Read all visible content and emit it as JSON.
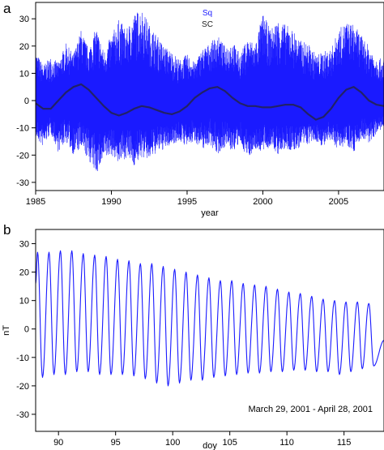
{
  "chart_data": [
    {
      "panel_label": "a",
      "type": "line",
      "xlabel": "year",
      "ylabel": "",
      "xlim": [
        1985,
        2008
      ],
      "ylim": [
        -33,
        36
      ],
      "x_ticks": [
        1985,
        1990,
        1995,
        2000,
        2005
      ],
      "y_ticks": [
        -30,
        -20,
        -10,
        0,
        10,
        20,
        30
      ],
      "legend_position": "top-right",
      "series": [
        {
          "name": "Sq",
          "color": "#1a1aff",
          "style": "dense oscillation envelope",
          "x": [
            1985,
            1985.5,
            1986,
            1986.5,
            1987,
            1987.5,
            1988,
            1988.5,
            1989,
            1989.5,
            1990,
            1990.5,
            1991,
            1991.5,
            1992,
            1992.5,
            1993,
            1993.5,
            1994,
            1994.5,
            1995,
            1995.5,
            1996,
            1996.5,
            1997,
            1997.5,
            1998,
            1998.5,
            1999,
            1999.5,
            2000,
            2000.5,
            2001,
            2001.5,
            2002,
            2002.5,
            2003,
            2003.5,
            2004,
            2004.5,
            2005,
            2005.5,
            2006,
            2006.5,
            2007,
            2007.5,
            2008
          ],
          "upper": [
            18,
            13,
            16,
            14,
            21,
            17,
            26,
            19,
            27,
            18,
            24,
            30,
            26,
            32,
            34,
            28,
            24,
            20,
            18,
            15,
            17,
            14,
            19,
            21,
            24,
            20,
            22,
            17,
            23,
            21,
            32,
            26,
            30,
            28,
            26,
            22,
            21,
            17,
            18,
            19,
            26,
            29,
            28,
            24,
            20,
            16,
            15
          ],
          "lower": [
            -14,
            -17,
            -12,
            -19,
            -15,
            -20,
            -18,
            -22,
            -27,
            -22,
            -20,
            -23,
            -21,
            -24,
            -21,
            -22,
            -19,
            -18,
            -16,
            -15,
            -17,
            -15,
            -18,
            -16,
            -20,
            -17,
            -19,
            -16,
            -21,
            -18,
            -19,
            -17,
            -20,
            -18,
            -19,
            -17,
            -16,
            -15,
            -17,
            -15,
            -18,
            -16,
            -19,
            -14,
            -16,
            -12,
            -10
          ]
        },
        {
          "name": "SC",
          "color": "#222266",
          "x": [
            1985,
            1985.5,
            1986,
            1986.5,
            1987,
            1987.5,
            1988,
            1988.5,
            1989,
            1989.5,
            1990,
            1990.5,
            1991,
            1991.5,
            1992,
            1992.5,
            1993,
            1993.5,
            1994,
            1994.5,
            1995,
            1995.5,
            1996,
            1996.5,
            1997,
            1997.5,
            1998,
            1998.5,
            1999,
            1999.5,
            2000,
            2000.5,
            2001,
            2001.5,
            2002,
            2002.5,
            2003,
            2003.5,
            2004,
            2004.5,
            2005,
            2005.5,
            2006,
            2006.5,
            2007,
            2007.5,
            2008
          ],
          "values": [
            -1,
            -3,
            -3,
            0,
            3,
            5,
            6,
            4,
            1,
            -2,
            -4.5,
            -5.5,
            -4.5,
            -3,
            -2,
            -2.5,
            -3.5,
            -4.5,
            -5,
            -4,
            -2,
            1,
            3,
            4.5,
            5,
            3.5,
            1,
            -1,
            -2,
            -2,
            -2.5,
            -2.5,
            -2,
            -1.5,
            -1.5,
            -2.5,
            -5,
            -7,
            -6,
            -3,
            1,
            4,
            5,
            3,
            0,
            -1.5,
            -2
          ]
        }
      ]
    },
    {
      "panel_label": "b",
      "type": "line",
      "xlabel": "doy",
      "ylabel": "nT",
      "xlim": [
        88,
        118.5
      ],
      "ylim": [
        -36,
        35
      ],
      "x_ticks": [
        90,
        95,
        100,
        105,
        110,
        115
      ],
      "y_ticks": [
        -30,
        -20,
        -10,
        0,
        10,
        20,
        30
      ],
      "annotation": "March 29, 2001 - April 28, 2001",
      "series": [
        {
          "name": "",
          "color": "#1a1aff",
          "period_days": 1,
          "peaks": [
            {
              "x": 88.17,
              "y": 27
            },
            {
              "x": 89.17,
              "y": 27
            },
            {
              "x": 90.17,
              "y": 27.5
            },
            {
              "x": 91.17,
              "y": 27.5
            },
            {
              "x": 92.17,
              "y": 26.5
            },
            {
              "x": 93.17,
              "y": 26
            },
            {
              "x": 94.17,
              "y": 25.5
            },
            {
              "x": 95.17,
              "y": 24.5
            },
            {
              "x": 96.17,
              "y": 24
            },
            {
              "x": 97.17,
              "y": 23
            },
            {
              "x": 98.17,
              "y": 23
            },
            {
              "x": 99.17,
              "y": 22
            },
            {
              "x": 100.17,
              "y": 21
            },
            {
              "x": 101.17,
              "y": 20
            },
            {
              "x": 102.17,
              "y": 19
            },
            {
              "x": 103.17,
              "y": 18
            },
            {
              "x": 104.17,
              "y": 17
            },
            {
              "x": 105.17,
              "y": 17
            },
            {
              "x": 106.17,
              "y": 16
            },
            {
              "x": 107.17,
              "y": 15.5
            },
            {
              "x": 108.17,
              "y": 15
            },
            {
              "x": 109.17,
              "y": 14
            },
            {
              "x": 110.17,
              "y": 13
            },
            {
              "x": 111.17,
              "y": 12.5
            },
            {
              "x": 112.17,
              "y": 11.5
            },
            {
              "x": 113.17,
              "y": 10.5
            },
            {
              "x": 114.17,
              "y": 10
            },
            {
              "x": 115.17,
              "y": 9.5
            },
            {
              "x": 116.17,
              "y": 9.5
            },
            {
              "x": 117.17,
              "y": 9
            }
          ],
          "troughs": [
            {
              "x": 88.6,
              "y": -17
            },
            {
              "x": 89.6,
              "y": -16
            },
            {
              "x": 90.6,
              "y": -16
            },
            {
              "x": 91.6,
              "y": -15
            },
            {
              "x": 92.6,
              "y": -15
            },
            {
              "x": 93.6,
              "y": -16
            },
            {
              "x": 94.6,
              "y": -16
            },
            {
              "x": 95.6,
              "y": -16
            },
            {
              "x": 96.6,
              "y": -16.5
            },
            {
              "x": 97.6,
              "y": -17.5
            },
            {
              "x": 98.6,
              "y": -19
            },
            {
              "x": 99.6,
              "y": -20
            },
            {
              "x": 100.6,
              "y": -19
            },
            {
              "x": 101.6,
              "y": -18
            },
            {
              "x": 102.6,
              "y": -18
            },
            {
              "x": 103.6,
              "y": -17
            },
            {
              "x": 104.6,
              "y": -16.5
            },
            {
              "x": 105.6,
              "y": -16
            },
            {
              "x": 106.6,
              "y": -15.5
            },
            {
              "x": 107.6,
              "y": -15.5
            },
            {
              "x": 108.6,
              "y": -15
            },
            {
              "x": 109.6,
              "y": -15
            },
            {
              "x": 110.6,
              "y": -14.5
            },
            {
              "x": 111.6,
              "y": -14.5
            },
            {
              "x": 112.6,
              "y": -15
            },
            {
              "x": 113.6,
              "y": -15
            },
            {
              "x": 114.6,
              "y": -16
            },
            {
              "x": 115.6,
              "y": -15
            },
            {
              "x": 116.6,
              "y": -14
            },
            {
              "x": 117.6,
              "y": -13
            }
          ]
        }
      ]
    }
  ]
}
